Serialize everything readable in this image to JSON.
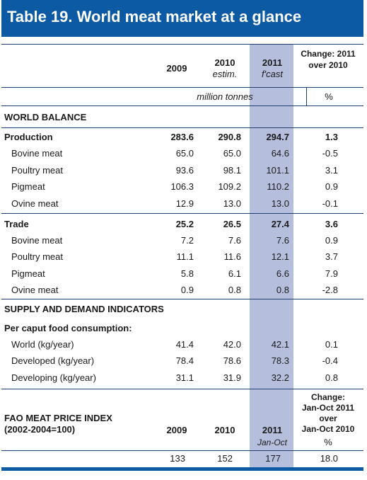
{
  "title": "Table 19. World meat market at a glance",
  "header": {
    "col_2009": "2009",
    "col_2010": "2010",
    "col_2010_sub": "estim.",
    "col_2011": "2011",
    "col_2011_sub": "f'cast",
    "col_change_line1": "Change: 2011",
    "col_change_line2": "over 2010",
    "unit_left": "million tonnes",
    "unit_right": "%"
  },
  "world_balance": {
    "heading": "WORLD BALANCE",
    "rows": [
      {
        "label": "Production",
        "bold": true,
        "v2009": "283.6",
        "v2010": "290.8",
        "v2011": "294.7",
        "change": "1.3"
      },
      {
        "label": "Bovine meat",
        "v2009": "65.0",
        "v2010": "65.0",
        "v2011": "64.6",
        "change": "-0.5"
      },
      {
        "label": "Poultry meat",
        "v2009": "93.6",
        "v2010": "98.1",
        "v2011": "101.1",
        "change": "3.1"
      },
      {
        "label": "Pigmeat",
        "v2009": "106.3",
        "v2010": "109.2",
        "v2011": "110.2",
        "change": "0.9"
      },
      {
        "label": "Ovine meat",
        "v2009": "12.9",
        "v2010": "13.0",
        "v2011": "13.0",
        "change": "-0.1"
      },
      {
        "label": "Trade",
        "bold": true,
        "v2009": "25.2",
        "v2010": "26.5",
        "v2011": "27.4",
        "change": "3.6"
      },
      {
        "label": "Bovine meat",
        "v2009": "7.2",
        "v2010": "7.6",
        "v2011": "7.6",
        "change": "0.9"
      },
      {
        "label": "Poultry meat",
        "v2009": "11.1",
        "v2010": "11.6",
        "v2011": "12.1",
        "change": "3.7"
      },
      {
        "label": "Pigmeat",
        "v2009": "5.8",
        "v2010": "6.1",
        "v2011": "6.6",
        "change": "7.9"
      },
      {
        "label": "Ovine meat",
        "v2009": "0.9",
        "v2010": "0.8",
        "v2011": "0.8",
        "change": "-2.8"
      }
    ]
  },
  "supply_demand": {
    "heading": "SUPPLY AND DEMAND INDICATORS",
    "subheading": "Per caput food consumption:",
    "rows": [
      {
        "label": "World (kg/year)",
        "v2009": "41.4",
        "v2010": "42.0",
        "v2011": "42.1",
        "change": "0.1"
      },
      {
        "label": "Developed (kg/year)",
        "v2009": "78.4",
        "v2010": "78.6",
        "v2011": "78.3",
        "change": "-0.4"
      },
      {
        "label": "Developing (kg/year)",
        "v2009": "31.1",
        "v2010": "31.9",
        "v2011": "32.2",
        "change": "0.8"
      }
    ]
  },
  "price_index": {
    "label_line1": "FAO MEAT PRICE INDEX",
    "label_line2": "(2002-2004=100)",
    "col_2009": "2009",
    "col_2010": "2010",
    "col_2011": "2011",
    "col_2011_sub": "Jan-Oct",
    "change_lines": [
      "Change:",
      "Jan-Oct 2011",
      "over",
      "Jan-Oct 2010"
    ],
    "change_unit": "%",
    "v2009": "133",
    "v2010": "152",
    "v2011": "177",
    "change": "18.0"
  }
}
